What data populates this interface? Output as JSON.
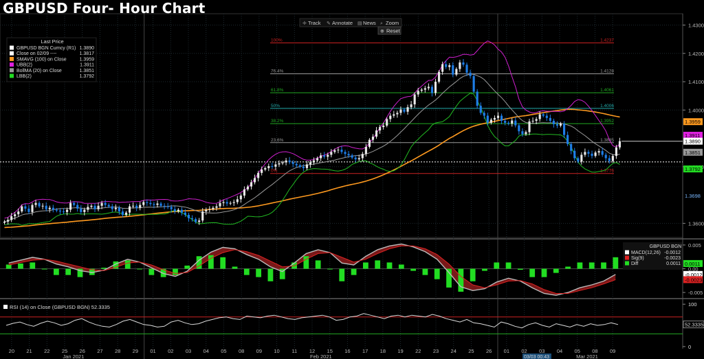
{
  "page_title": "GBPUSD Four- Hour Chart",
  "toolbar": {
    "track_label": "Track",
    "annotate_label": "Annotate",
    "news_label": "News",
    "zoom_label": "Zoom",
    "reset_label": "Reset"
  },
  "legend": {
    "header": "Last Price",
    "items": [
      {
        "label": "GBPUSD BGN Curncy  (R1)",
        "value": "1.3890",
        "color": "#ffffff"
      },
      {
        "label": "Close on 02/09 ----",
        "value": "1.3817",
        "color": "#ffffff"
      },
      {
        "label": "SMAVG (100)  on Close",
        "value": "1.3959",
        "color": "#ff9a1f"
      },
      {
        "label": "UBB(2)",
        "value": "1.3911",
        "color": "#e020e0"
      },
      {
        "label": "BollMA (20)  on Close",
        "value": "1.3851",
        "color": "#9a9a9a"
      },
      {
        "label": "LBB(2)",
        "value": "1.3792",
        "color": "#22dd22"
      }
    ]
  },
  "macd_legend": {
    "header": "GBPUSD BGN",
    "items": [
      {
        "label": "MACD(12,26)",
        "value": "-0.0012",
        "color": "#ffffff"
      },
      {
        "label": "Sig(9)",
        "value": "-0.0023",
        "color": "#dd2222"
      },
      {
        "label": "Diff",
        "value": "0.0011",
        "color": "#22dd22"
      }
    ]
  },
  "rsi_legend": {
    "label": "RSI (14)  on Close (GBPUSD BGN) 52.3335"
  },
  "cursor_time": "03/03 00:43",
  "colors": {
    "up": "#e8e8e8",
    "down": "#1e7ee8",
    "sma": "#ff9a1f",
    "ubb": "#d020d0",
    "mid": "#9a9a9a",
    "lbb": "#22bb22",
    "macd": "#ffffff",
    "sig": "#dd2222"
  },
  "chart_data": [
    {
      "type": "candlestick",
      "title": "GBPUSD Four- Hour Chart",
      "y_ticks": [
        "1.3600",
        "1.3800",
        "1.4000",
        "1.4100",
        "1.4200",
        "1.4300"
      ],
      "y_tick_values": [
        1.36,
        1.38,
        1.4,
        1.41,
        1.42,
        1.43
      ],
      "ylim": [
        1.355,
        1.434
      ],
      "x_tick_labels": [
        "20",
        "21",
        "22",
        "25",
        "26",
        "27",
        "28",
        "29",
        "01",
        "02",
        "03",
        "04",
        "05",
        "08",
        "09",
        "10",
        "11",
        "12",
        "15",
        "16",
        "17",
        "18",
        "19",
        "22",
        "23",
        "24",
        "25",
        "26",
        "01",
        "02",
        "03",
        "04",
        "05",
        "08",
        "09"
      ],
      "month_labels": [
        "Jan 2021",
        "Feb 2021",
        "Mar 2021"
      ],
      "closes": [
        1.3606,
        1.3612,
        1.3625,
        1.3632,
        1.3642,
        1.366,
        1.3652,
        1.364,
        1.3665,
        1.3672,
        1.366,
        1.3662,
        1.365,
        1.3655,
        1.3648,
        1.3645,
        1.3642,
        1.364,
        1.3648,
        1.3672,
        1.3665,
        1.3652,
        1.364,
        1.3648,
        1.3658,
        1.3662,
        1.365,
        1.3662,
        1.3672,
        1.3665,
        1.366,
        1.365,
        1.3655,
        1.3642,
        1.363,
        1.3638,
        1.366,
        1.3662,
        1.3655,
        1.3665,
        1.3675,
        1.3672,
        1.3668,
        1.3665,
        1.367,
        1.3662,
        1.366,
        1.3658,
        1.365,
        1.3642,
        1.3648,
        1.3638,
        1.363,
        1.3618,
        1.3615,
        1.3605,
        1.361,
        1.3642,
        1.3648,
        1.365,
        1.3655,
        1.366,
        1.3672,
        1.3675,
        1.367,
        1.3672,
        1.3675,
        1.3685,
        1.3698,
        1.372,
        1.373,
        1.3745,
        1.376,
        1.3778,
        1.379,
        1.3795,
        1.3802,
        1.38,
        1.3808,
        1.3812,
        1.3815,
        1.3822,
        1.3816,
        1.381,
        1.3805,
        1.38,
        1.3795,
        1.3808,
        1.3815,
        1.3822,
        1.383,
        1.384,
        1.3835,
        1.3842,
        1.3852,
        1.3858,
        1.386,
        1.3852,
        1.3845,
        1.384,
        1.3832,
        1.3826,
        1.383,
        1.3845,
        1.387,
        1.3895,
        1.3906,
        1.3928,
        1.394,
        1.3945,
        1.3968,
        1.398,
        1.3985,
        1.399,
        1.4002,
        1.3994,
        1.401,
        1.402,
        1.4055,
        1.4068,
        1.4072,
        1.4077,
        1.4082,
        1.406,
        1.41,
        1.4135,
        1.4162,
        1.4152,
        1.4158,
        1.4125,
        1.4145,
        1.4168,
        1.416,
        1.4132,
        1.412,
        1.4065,
        1.4015,
        1.399,
        1.398,
        1.3955,
        1.3966,
        1.3972,
        1.398,
        1.3962,
        1.3955,
        1.3952,
        1.3963,
        1.3946,
        1.3925,
        1.3915,
        1.3922,
        1.396,
        1.3962,
        1.3968,
        1.3985,
        1.398,
        1.3972,
        1.3962,
        1.395,
        1.3945,
        1.3952,
        1.3912,
        1.388,
        1.3856,
        1.383,
        1.3818,
        1.3842,
        1.3852,
        1.3846,
        1.3838,
        1.385,
        1.3855,
        1.3842,
        1.383,
        1.382,
        1.3838,
        1.3868,
        1.389
      ],
      "series": [
        {
          "name": "SMAVG (100)  on Close",
          "last": 1.3959
        },
        {
          "name": "UBB(2)",
          "last": 1.3911
        },
        {
          "name": "BollMA (20)  on Close",
          "last": 1.3851
        },
        {
          "name": "LBB(2)",
          "last": 1.3792
        }
      ],
      "horizontal_lines": [
        {
          "name": "Close on 02/09",
          "value": 1.3817
        }
      ],
      "fibonacci": {
        "levels": [
          {
            "pct": "100",
            "value": 1.4237,
            "label": "1.4237",
            "color": "#cc2222"
          },
          {
            "pct": "76.4",
            "value": 1.4128,
            "label": "1.4128",
            "color": "#9a9a9a"
          },
          {
            "pct": "61.8",
            "value": 1.4061,
            "label": "1.4061",
            "color": "#22aa22"
          },
          {
            "pct": "50",
            "value": 1.4006,
            "label": "1.4006",
            "color": "#22aaaa"
          },
          {
            "pct": "38.2",
            "value": 1.3952,
            "label": "1.3952",
            "color": "#22aa22"
          },
          {
            "pct": "23.6",
            "value": 1.3885,
            "label": "1.3885",
            "color": "#9a9a9a"
          },
          {
            "pct": "0",
            "value": 1.3776,
            "label": "1.3776",
            "color": "#cc2222"
          }
        ]
      },
      "right_labels": [
        {
          "text": "1.3959",
          "value": 1.3959,
          "bg": "#ff9a1f",
          "fg": "#000"
        },
        {
          "text": "1.3911",
          "value": 1.3911,
          "bg": "#e020e0",
          "fg": "#000"
        },
        {
          "text": "1.3890",
          "value": 1.389,
          "bg": "#ffffff",
          "fg": "#000"
        },
        {
          "text": "1.3851",
          "value": 1.3851,
          "bg": "#9a9a9a",
          "fg": "#000"
        },
        {
          "text": "1.3792",
          "value": 1.3792,
          "bg": "#22dd22",
          "fg": "#000"
        },
        {
          "text": "1.3698",
          "value": 1.3698,
          "bg": "#000000",
          "fg": "#7ab8ff"
        }
      ]
    },
    {
      "type": "macd",
      "y_ticks": [
        "0.005",
        "0.00",
        "-0.005"
      ],
      "y_tick_values": [
        0.005,
        0.0,
        -0.005
      ],
      "ylim": [
        -0.006,
        0.006
      ],
      "macd": [
        0.0012,
        0.0018,
        0.0024,
        0.002,
        0.001,
        0.0004,
        -0.0004,
        -0.0008,
        -0.0003,
        0.001,
        0.002,
        0.0014,
        0.0002,
        -0.001,
        -0.0016,
        -0.0005,
        0.0018,
        0.0035,
        0.0045,
        0.0042,
        0.003,
        0.002,
        0.0004,
        -0.0006,
        0.0012,
        0.0032,
        0.004,
        0.0034,
        0.0012,
        0.0008,
        0.0026,
        0.004,
        0.0048,
        0.0052,
        0.0046,
        0.0036,
        0.002,
        -0.0008,
        -0.0038,
        -0.0046,
        -0.0042,
        -0.0028,
        -0.002,
        -0.0026,
        -0.004,
        -0.0052,
        -0.0056,
        -0.005,
        -0.004,
        -0.0034,
        -0.0026,
        -0.0012
      ],
      "sig": [
        0.0008,
        0.0013,
        0.0018,
        0.002,
        0.0016,
        0.001,
        0.0004,
        -0.0002,
        -0.0004,
        0.0003,
        0.0012,
        0.0014,
        0.0008,
        -0.0002,
        -0.001,
        -0.0008,
        0.0006,
        0.0022,
        0.0034,
        0.004,
        0.0036,
        0.0028,
        0.0016,
        0.0004,
        0.0006,
        0.002,
        0.0032,
        0.0034,
        0.0024,
        0.0014,
        0.002,
        0.0032,
        0.0042,
        0.0048,
        0.0048,
        0.0042,
        0.003,
        0.001,
        -0.0016,
        -0.0034,
        -0.004,
        -0.0034,
        -0.0026,
        -0.0025,
        -0.0032,
        -0.0044,
        -0.0052,
        -0.0052,
        -0.0046,
        -0.004,
        -0.0032,
        -0.0023
      ],
      "right_labels": [
        {
          "text": "0.0011",
          "value": 0.0011,
          "bg": "#22dd22",
          "fg": "#000"
        },
        {
          "text": "-0.0012",
          "value": -0.0012,
          "bg": "#ffffff",
          "fg": "#000"
        },
        {
          "text": "-0.0023",
          "value": -0.0023,
          "bg": "#dd2222",
          "fg": "#000"
        }
      ]
    },
    {
      "type": "line",
      "name": "RSI (14)",
      "y_ticks": [
        "100",
        "52.3335",
        "0"
      ],
      "y_tick_values": [
        100,
        52.3335,
        0
      ],
      "ylim": [
        -5,
        110
      ],
      "bands": [
        70,
        30
      ],
      "values": [
        50,
        55,
        58,
        52,
        48,
        55,
        60,
        56,
        50,
        54,
        62,
        66,
        58,
        52,
        48,
        46,
        52,
        60,
        64,
        58,
        52,
        50,
        46,
        48,
        58,
        62,
        56,
        52,
        54,
        60,
        64,
        68,
        70,
        66,
        64,
        72,
        70,
        68,
        72,
        74,
        70,
        66,
        64,
        68,
        70,
        72,
        74,
        70,
        62,
        64,
        70,
        72,
        78,
        74,
        70,
        66,
        72,
        74,
        70,
        74,
        72,
        70,
        76,
        72,
        66,
        62,
        58,
        64,
        56,
        54,
        50,
        46,
        58,
        54,
        48,
        44,
        52,
        56,
        50,
        46,
        54,
        50,
        46,
        52,
        48,
        54,
        50,
        52,
        56,
        52
      ]
    }
  ]
}
